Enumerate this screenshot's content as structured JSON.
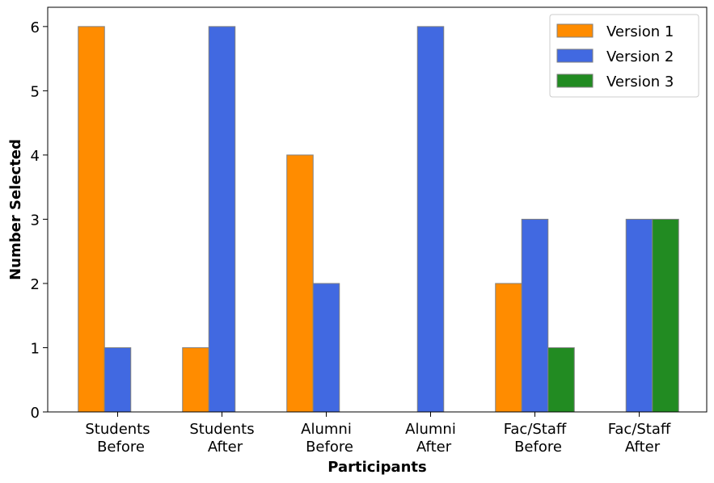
{
  "chart_data": {
    "type": "bar",
    "categories": [
      "Students\nBefore",
      "Students\nAfter",
      "Alumni\nBefore",
      "Alumni\nAfter",
      "Fac/Staff\nBefore",
      "Fac/Staff\nAfter"
    ],
    "series": [
      {
        "name": "Version 1",
        "color": "#ff8c00",
        "values": [
          6,
          1,
          4,
          0,
          2,
          0
        ]
      },
      {
        "name": "Version 2",
        "color": "#4169e1",
        "values": [
          1,
          6,
          2,
          6,
          3,
          3
        ]
      },
      {
        "name": "Version 3",
        "color": "#228b22",
        "values": [
          0,
          0,
          0,
          0,
          1,
          3
        ]
      }
    ],
    "xlabel": "Participants",
    "ylabel": "Number Selected",
    "ylim": [
      0,
      6.3
    ],
    "yticks": [
      0,
      1,
      2,
      3,
      4,
      5,
      6
    ],
    "grid": false,
    "legend_position": "top-right"
  }
}
